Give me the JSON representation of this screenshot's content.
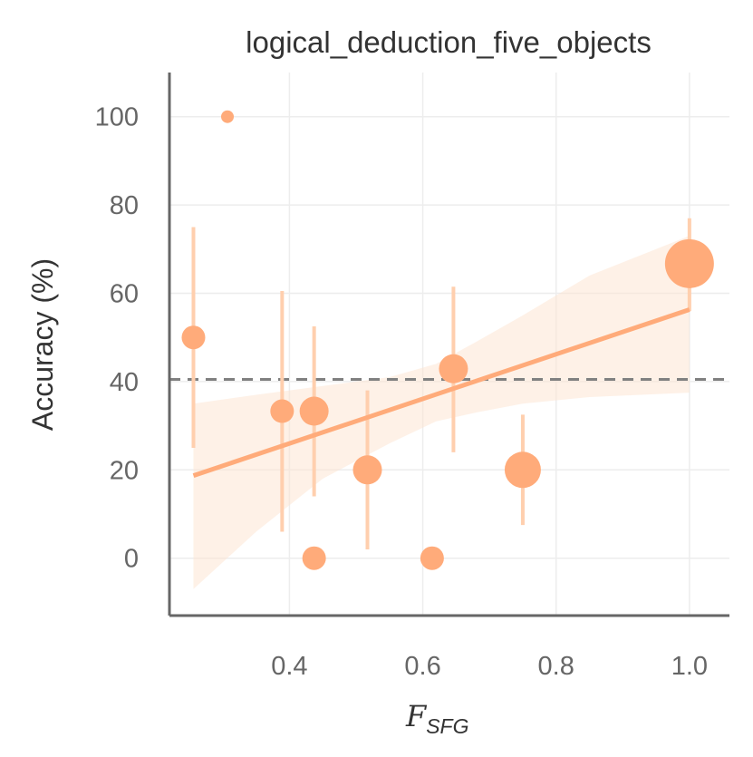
{
  "chart_data": {
    "type": "scatter",
    "title": "logical_deduction_five_objects",
    "xlabel": "F",
    "xlabel_sub": "SFG",
    "ylabel": "Accuracy (%)",
    "xlim": [
      0.22,
      1.06
    ],
    "ylim": [
      -13,
      110
    ],
    "xticks": [
      0.4,
      0.6,
      0.8,
      1.0
    ],
    "xtick_labels": [
      "0.4",
      "0.6",
      "0.8",
      "1.0"
    ],
    "yticks": [
      0,
      20,
      40,
      60,
      80,
      100
    ],
    "ytick_labels": [
      "0",
      "20",
      "40",
      "60",
      "80",
      "100"
    ],
    "grid": true,
    "color": "#ffab7a",
    "baseline": 40.5,
    "points": [
      {
        "x": 0.256,
        "y": 50,
        "err_low": 25,
        "err_high": 75,
        "size": 2
      },
      {
        "x": 0.307,
        "y": 100,
        "size": 1
      },
      {
        "x": 0.389,
        "y": 33.3,
        "err_low": 6,
        "err_high": 60.5,
        "size": 2
      },
      {
        "x": 0.437,
        "y": 33.3,
        "err_low": 14,
        "err_high": 52.5,
        "size": 3
      },
      {
        "x": 0.437,
        "y": 0,
        "size": 2
      },
      {
        "x": 0.517,
        "y": 20,
        "err_low": 2,
        "err_high": 38,
        "size": 3
      },
      {
        "x": 0.614,
        "y": 0,
        "size": 2
      },
      {
        "x": 0.646,
        "y": 42.9,
        "err_low": 24,
        "err_high": 61.5,
        "size": 3
      },
      {
        "x": 0.75,
        "y": 20,
        "err_low": 7.5,
        "err_high": 32.5,
        "size": 4
      },
      {
        "x": 1.0,
        "y": 66.7,
        "err_low": 56,
        "err_high": 77,
        "size": 5
      }
    ],
    "regression": {
      "x": [
        0.256,
        1.0
      ],
      "y": [
        18.7,
        56.3
      ]
    },
    "ci_band": {
      "x": [
        0.256,
        0.35,
        0.45,
        0.55,
        0.62,
        0.68,
        0.75,
        0.85,
        1.0
      ],
      "lower": [
        -7,
        6,
        18,
        26,
        31,
        33,
        35,
        36.5,
        37.5
      ],
      "upper": [
        35,
        37,
        39,
        41,
        44,
        49,
        55,
        64,
        73
      ]
    }
  }
}
